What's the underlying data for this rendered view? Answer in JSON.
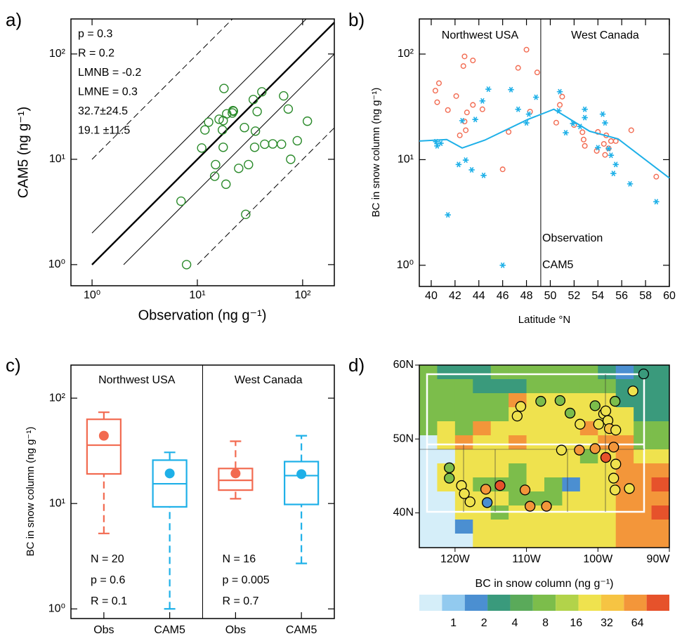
{
  "chart_data": [
    {
      "type": "scatter",
      "label": "a)",
      "xlabel": "Observation (ng g⁻¹)",
      "ylabel": "CAM5 (ng g⁻¹)",
      "log_x": true,
      "log_y": true,
      "xlim": [
        0.63,
        200
      ],
      "ylim": [
        0.63,
        215
      ],
      "xticks": [
        {
          "value": 1,
          "label": "10⁰"
        },
        {
          "value": 10,
          "label": "10¹"
        },
        {
          "value": 100,
          "label": "10²"
        }
      ],
      "yticks": [
        {
          "value": 1,
          "label": "10⁰"
        },
        {
          "value": 10,
          "label": "10¹"
        },
        {
          "value": 100,
          "label": "10²"
        }
      ],
      "series": [
        {
          "color": "#2a8a2a",
          "marker": "circle",
          "x": [
            17.9,
            41,
            34,
            66,
            73,
            21.8,
            22,
            21.5,
            19,
            16.1,
            17.6,
            37,
            12.8,
            28,
            111,
            17.3,
            11.8,
            35.6,
            89,
            52,
            43.6,
            63,
            11,
            35,
            17.6,
            77,
            14.9,
            24.7,
            30.6,
            14.6,
            18.7,
            7.0,
            28.8,
            7.9
          ],
          "values": [
            47,
            43.7,
            36.9,
            40,
            30,
            29,
            28.6,
            27.5,
            27,
            24,
            23.3,
            28.4,
            22.5,
            20,
            23,
            19,
            19,
            18.5,
            15,
            14,
            13.9,
            13.9,
            12.8,
            13,
            13,
            10,
            8.9,
            8.2,
            8.9,
            6.9,
            5.8,
            4.0,
            3.0,
            1.0
          ]
        }
      ],
      "annotations": [
        {
          "text": "p = 0.3",
          "color": "#000000"
        },
        {
          "text": "R = 0.2",
          "color": "#000000"
        },
        {
          "text": "LMNB = -0.2",
          "color": "#000000"
        },
        {
          "text": "LMNE = 0.3",
          "color": "#000000"
        },
        {
          "text": "32.7±24.5",
          "color": "#f26a50"
        },
        {
          "text": "19.1 ±11.5",
          "color": "#1eb0e8"
        }
      ]
    },
    {
      "type": "scatter",
      "label": "b)",
      "xlabel": "Latitude °N",
      "ylabel": "BC in snow column (ng g⁻¹)",
      "log_x": false,
      "log_y": true,
      "xlim": [
        39,
        60
      ],
      "ylim": [
        0.63,
        215
      ],
      "xticks": [
        40,
        42,
        44,
        46,
        48,
        50,
        52,
        54,
        56,
        58,
        60
      ],
      "yticks": [
        {
          "value": 1,
          "label": "10⁰"
        },
        {
          "value": 10,
          "label": "10¹"
        },
        {
          "value": 100,
          "label": "10²"
        }
      ],
      "regions": [
        "Northwest USA",
        "West Canada"
      ],
      "divider": 49.2,
      "series": [
        {
          "name": "Observation",
          "color": "#f26a50",
          "marker": "circle",
          "x": [
            40.35,
            40.65,
            40.5,
            41.4,
            42.1,
            42.8,
            42.7,
            43.5,
            42.8,
            42.9,
            42.4,
            43.0,
            43.5,
            44.3,
            46.0,
            46.5,
            47.3,
            48.0,
            48.3,
            48.9,
            51.0,
            50.5,
            50.8,
            52.0,
            52.7,
            52.8,
            52.9,
            53.9,
            54.6,
            54.5,
            54.0,
            54.9,
            55.1,
            55.5,
            54.7,
            56.8,
            58.9
          ],
          "values": [
            45,
            53,
            35,
            29.5,
            40,
            95,
            77,
            87,
            23,
            19,
            17,
            28,
            33,
            30,
            8.1,
            18.3,
            74,
            110,
            28.5,
            67,
            39.5,
            22.4,
            33,
            21.3,
            18.2,
            15.5,
            13.5,
            12.1,
            11.1,
            14.1,
            18.3,
            12.8,
            15,
            15,
            17,
            19,
            6.9
          ]
        },
        {
          "name": "CAM5",
          "color": "#1eb0e8",
          "marker": "asterisk",
          "x": [
            40.5,
            40.8,
            40.4,
            41.4,
            42.3,
            42.6,
            42.9,
            43.4,
            43.7,
            44.3,
            44.4,
            44.8,
            46.0,
            46.7,
            47.3,
            48.0,
            48.2,
            48.8,
            50.8,
            50.7,
            51.3,
            51.9,
            52.9,
            52.9,
            52.5,
            54.4,
            54.6,
            54.0,
            54.9,
            55.1,
            55.5,
            55.3,
            56.7,
            58.9
          ],
          "values": [
            13.5,
            14.3,
            14.8,
            3.0,
            9,
            23.4,
            9.9,
            8,
            24,
            36,
            7.1,
            46.5,
            1.0,
            46,
            30,
            22.3,
            27,
            39,
            44,
            29,
            18,
            22,
            30,
            25,
            20.6,
            27,
            22.3,
            13,
            12.7,
            11,
            9,
            7.4,
            5.9,
            4.0
          ]
        },
        {
          "color": "#1eb0e8",
          "marker": "line",
          "x": [
            39,
            41.3,
            42.6,
            44.5,
            48.1,
            50.3,
            53.3,
            55.7,
            60
          ],
          "values": [
            15,
            15.5,
            12.9,
            15.3,
            24,
            30,
            18.6,
            15.7,
            6.7
          ]
        }
      ]
    },
    {
      "type": "box",
      "label": "c)",
      "ylabel": "BC in snow column (ng g⁻¹)",
      "log_y": true,
      "ylim": [
        0.81,
        206
      ],
      "yticks": [
        {
          "value": 1,
          "label": "10⁰"
        },
        {
          "value": 10,
          "label": "10¹"
        },
        {
          "value": 100,
          "label": "10²"
        }
      ],
      "categories": [
        "Obs",
        "CAM5",
        "Obs",
        "CAM5"
      ],
      "regions": [
        "Northwest USA",
        "West Canada"
      ],
      "stats": [
        [
          "N = 20",
          "p = 0.6",
          "R = 0.1"
        ],
        [
          "N = 16",
          "p = 0.005",
          "R = 0.7"
        ]
      ],
      "boxes": [
        {
          "color": "#f26a50",
          "whislo": 5.2,
          "q1": 19.1,
          "med": 35.8,
          "q3": 63,
          "whishi": 73.5,
          "mean": 44
        },
        {
          "color": "#1eb0e8",
          "whislo": 1.0,
          "q1": 9.3,
          "med": 15.4,
          "q3": 25.8,
          "whishi": 30.6,
          "mean": 19.3
        },
        {
          "color": "#f26a50",
          "whislo": 11.1,
          "q1": 13.4,
          "med": 16.6,
          "q3": 21.5,
          "whishi": 39,
          "mean": 19.3
        },
        {
          "color": "#1eb0e8",
          "whislo": 2.7,
          "q1": 9.8,
          "med": 18.4,
          "q3": 25,
          "whishi": 44,
          "mean": 19
        }
      ]
    },
    {
      "type": "map",
      "label": "d)",
      "xlim": [
        -125,
        -90
      ],
      "ylim": [
        35.3,
        60
      ],
      "xticks": [
        {
          "value": -120,
          "label": "120W"
        },
        {
          "value": -110,
          "label": "110W"
        },
        {
          "value": -100,
          "label": "100W"
        },
        {
          "value": -90,
          "label": "90W"
        }
      ],
      "yticks": [
        {
          "value": 60,
          "label": "60N"
        },
        {
          "value": 50,
          "label": "50N"
        },
        {
          "value": 40,
          "label": "40N"
        }
      ],
      "grid_lon": [
        -125,
        -122.5,
        -120,
        -117.5,
        -115,
        -112.5,
        -110,
        -107.5,
        -105,
        -102.5,
        -100,
        -97.5,
        -95,
        -92.5,
        -90
      ],
      "grid_lat": [
        60,
        58.1,
        56.2,
        54.3,
        52.4,
        50.5,
        48.6,
        46.7,
        44.8,
        42.9,
        41,
        39.1,
        37.2,
        35.3
      ],
      "grid": [
        [
          7.8,
          2.8,
          2.8,
          2.8,
          7.8,
          7.8,
          7.8,
          7.8,
          7.8,
          7.8,
          2.8,
          1.7,
          2.8,
          2.8
        ],
        [
          7.8,
          7.8,
          7.8,
          2.8,
          2.8,
          2.8,
          7.8,
          7.8,
          7.8,
          7.8,
          7.8,
          2.8,
          2.8,
          2.8
        ],
        [
          7.8,
          7.8,
          7.8,
          7.8,
          7.8,
          61,
          21.8,
          21.8,
          21.8,
          21.8,
          21.8,
          2.8,
          2.8,
          2.8
        ],
        [
          7.8,
          7.8,
          7.8,
          7.8,
          7.8,
          21.8,
          21.8,
          21.8,
          21.8,
          21.8,
          21.8,
          21.8,
          2.8,
          2.8
        ],
        [
          7.8,
          21.8,
          7.8,
          61,
          21.8,
          21.8,
          21.8,
          21.8,
          21.8,
          61,
          21.8,
          21.8,
          7.8,
          7.8
        ],
        [
          0.6,
          21.8,
          61,
          21.8,
          21.8,
          61,
          21.8,
          21.8,
          21.8,
          21.8,
          61,
          61,
          7.8,
          7.8
        ],
        [
          0.6,
          0.6,
          21.8,
          21.8,
          21.8,
          21.8,
          21.8,
          21.8,
          21.8,
          7.8,
          21.8,
          61,
          21.8,
          21.8
        ],
        [
          0.6,
          21.8,
          21.8,
          21.8,
          21.8,
          7.8,
          21.8,
          21.8,
          21.8,
          21.8,
          21.8,
          61,
          61,
          61
        ],
        [
          0.6,
          21.8,
          21.8,
          7.8,
          7.8,
          7.8,
          21.8,
          7.8,
          1.7,
          21.8,
          21.8,
          61,
          61,
          101
        ],
        [
          0.6,
          0.6,
          21.8,
          21.8,
          21.8,
          7.8,
          7.8,
          7.8,
          21.8,
          21.8,
          21.8,
          61,
          61,
          61
        ],
        [
          0.6,
          0.6,
          21.8,
          21.8,
          7.8,
          21.8,
          21.8,
          21.8,
          21.8,
          21.8,
          21.8,
          61,
          61,
          101
        ],
        [
          0.6,
          0.6,
          1.7,
          21.8,
          21.8,
          21.8,
          21.8,
          21.8,
          21.8,
          21.8,
          21.8,
          61,
          61,
          61
        ],
        [
          0.6,
          0.6,
          0.6,
          21.8,
          21.8,
          21.8,
          21.8,
          21.8,
          21.8,
          21.8,
          21.8,
          61,
          61,
          61
        ]
      ],
      "sites": {
        "lon": [
          -93.6,
          -95.1,
          -97.6,
          -99.2,
          -110.8,
          -108.0,
          -105.3,
          -111.3,
          -103.9,
          -102.5,
          -100.4,
          -98.9,
          -98.6,
          -98.4,
          -97.5,
          -99.9,
          -105.1,
          -102.6,
          -100.4,
          -97.8,
          -98.9,
          -97.5,
          -97.8,
          -97.6,
          -95.6,
          -120.8,
          -120.8,
          -119.1,
          -118.7,
          -117.9,
          -115.7,
          -113.7,
          -110.2,
          -109.5,
          -107.2,
          -115.5
        ],
        "lat": [
          58.8,
          56.5,
          55.1,
          53.4,
          54.4,
          55.1,
          55.2,
          53.1,
          53.5,
          52.0,
          54.5,
          53.8,
          52.5,
          51.4,
          51.2,
          52.0,
          48.5,
          48.5,
          48.7,
          48.9,
          47.5,
          46.6,
          44.7,
          43.1,
          43.3,
          46.1,
          44.7,
          43.7,
          42.6,
          41.5,
          43.2,
          43.7,
          43.1,
          40.9,
          40.9,
          41.4
        ],
        "values": [
          2.8,
          21.8,
          7.8,
          21.8,
          21.8,
          7.8,
          7.8,
          21.8,
          7.8,
          21.8,
          7.8,
          21.8,
          21.8,
          40,
          21.8,
          21.8,
          21.8,
          61,
          61,
          61,
          101,
          21.8,
          21.8,
          21.8,
          21.8,
          7.8,
          7.8,
          21.8,
          21.8,
          21.8,
          61,
          101,
          61,
          61,
          61,
          2
        ]
      },
      "colorbar": {
        "title": "BC in snow column (ng g⁻¹)",
        "colors": [
          "#d5eef9",
          "#92caef",
          "#4b8fd1",
          "#3a9a7c",
          "#5aaa5a",
          "#7cbd4b",
          "#b2d34a",
          "#efe24e",
          "#f6c443",
          "#f3963a",
          "#e6522b"
        ],
        "ticks": [
          1,
          2,
          4,
          8,
          16,
          32,
          64
        ]
      }
    }
  ]
}
